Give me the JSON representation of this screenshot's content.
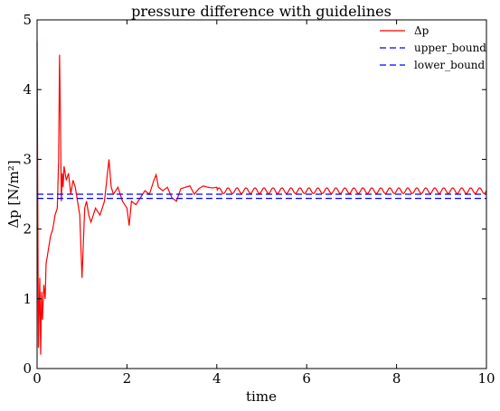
{
  "chart_data": {
    "type": "line",
    "title": "pressure difference with guidelines",
    "xlabel": "time",
    "ylabel": "Δp [N/m²]",
    "xlim": [
      0,
      10
    ],
    "ylim": [
      0,
      5
    ],
    "xticks": [
      0,
      2,
      4,
      6,
      8,
      10
    ],
    "yticks": [
      0,
      1,
      2,
      3,
      4,
      5
    ],
    "grid": false,
    "legend_position": "top-right",
    "series": [
      {
        "name": "Δp",
        "color": "#ff0000",
        "style": "solid",
        "x": [
          0.0,
          0.03,
          0.06,
          0.08,
          0.1,
          0.12,
          0.15,
          0.18,
          0.2,
          0.25,
          0.3,
          0.35,
          0.4,
          0.45,
          0.48,
          0.5,
          0.52,
          0.54,
          0.56,
          0.58,
          0.6,
          0.65,
          0.7,
          0.75,
          0.8,
          0.85,
          0.9,
          0.95,
          1.0,
          1.03,
          1.06,
          1.1,
          1.15,
          1.2,
          1.3,
          1.4,
          1.5,
          1.55,
          1.6,
          1.65,
          1.7,
          1.8,
          1.9,
          2.0,
          2.05,
          2.1,
          2.2,
          2.3,
          2.4,
          2.5,
          2.6,
          2.65,
          2.7,
          2.8,
          2.9,
          3.0,
          3.1,
          3.2,
          3.3,
          3.4,
          3.5,
          3.6,
          3.7,
          3.8,
          3.9,
          4.0
        ],
        "y": [
          4.7,
          0.3,
          1.3,
          0.2,
          1.1,
          0.7,
          1.2,
          1.0,
          1.5,
          1.7,
          1.9,
          2.0,
          2.2,
          2.3,
          3.0,
          4.5,
          3.6,
          2.4,
          2.8,
          2.6,
          2.9,
          2.7,
          2.8,
          2.5,
          2.7,
          2.6,
          2.4,
          2.2,
          1.3,
          1.8,
          2.3,
          2.4,
          2.2,
          2.1,
          2.3,
          2.2,
          2.4,
          2.7,
          3.0,
          2.6,
          2.5,
          2.6,
          2.4,
          2.3,
          2.05,
          2.4,
          2.35,
          2.45,
          2.55,
          2.5,
          2.7,
          2.78,
          2.6,
          2.55,
          2.6,
          2.45,
          2.4,
          2.58,
          2.6,
          2.62,
          2.5,
          2.58,
          2.62,
          2.6,
          2.59,
          2.6
        ],
        "periodic_tail": {
          "x_start": 4.0,
          "x_end": 10.0,
          "mean": 2.55,
          "amplitude": 0.04,
          "period": 0.2
        }
      },
      {
        "name": "upper_bound",
        "color": "#0000ff",
        "style": "dashed",
        "x": [
          0,
          10
        ],
        "y": [
          2.5,
          2.5
        ]
      },
      {
        "name": "lower_bound",
        "color": "#0000ff",
        "style": "dashed",
        "x": [
          0,
          10
        ],
        "y": [
          2.44,
          2.44
        ]
      }
    ]
  }
}
